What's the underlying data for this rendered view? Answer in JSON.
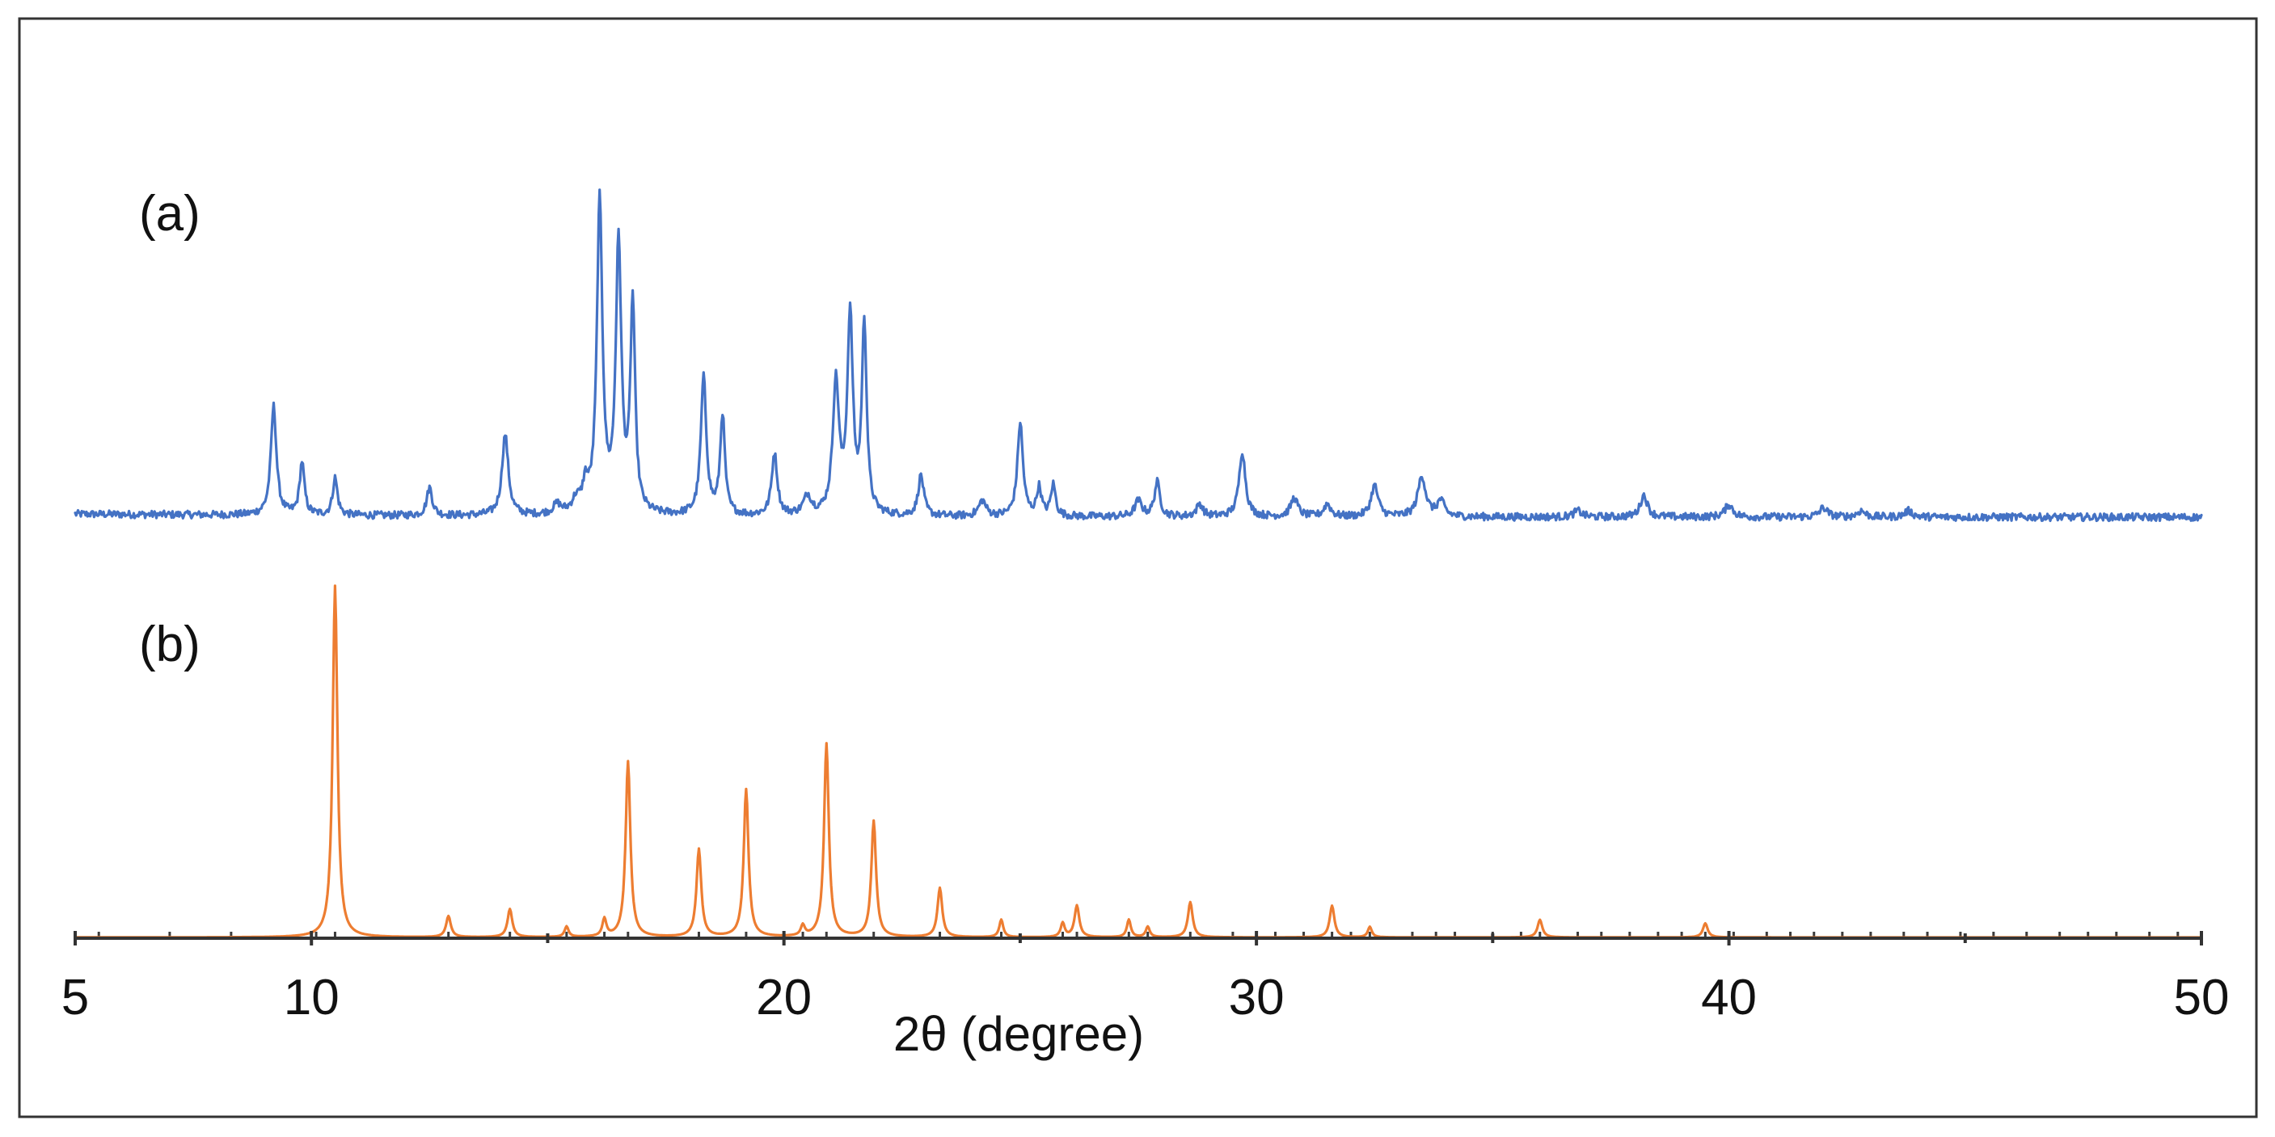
{
  "chart_data": {
    "type": "line",
    "xlabel": "2θ (degree)",
    "ylabel": "",
    "xlim": [
      5,
      50
    ],
    "xticks": [
      5,
      10,
      20,
      30,
      40,
      50
    ],
    "minor_xticks": [
      15,
      25,
      35,
      45
    ],
    "grid": false,
    "legend": "none",
    "series": [
      {
        "name": "(a)",
        "color": "#4472c4",
        "baseline": 0.0,
        "noise": 0.012,
        "peaks": [
          [
            9.2,
            0.35,
            0.07
          ],
          [
            9.8,
            0.17,
            0.06
          ],
          [
            10.5,
            0.12,
            0.06
          ],
          [
            12.5,
            0.09,
            0.07
          ],
          [
            14.1,
            0.26,
            0.08
          ],
          [
            15.2,
            0.03,
            0.1
          ],
          [
            15.6,
            0.04,
            0.1
          ],
          [
            15.8,
            0.08,
            0.07
          ],
          [
            16.1,
            1.0,
            0.07
          ],
          [
            16.5,
            0.86,
            0.07
          ],
          [
            16.8,
            0.67,
            0.06
          ],
          [
            18.3,
            0.44,
            0.07
          ],
          [
            18.7,
            0.32,
            0.06
          ],
          [
            19.8,
            0.2,
            0.07
          ],
          [
            20.5,
            0.06,
            0.1
          ],
          [
            21.1,
            0.42,
            0.08
          ],
          [
            21.4,
            0.63,
            0.07
          ],
          [
            21.7,
            0.61,
            0.06
          ],
          [
            22.9,
            0.13,
            0.07
          ],
          [
            24.2,
            0.05,
            0.09
          ],
          [
            25.0,
            0.3,
            0.07
          ],
          [
            25.4,
            0.09,
            0.06
          ],
          [
            25.7,
            0.1,
            0.06
          ],
          [
            27.5,
            0.05,
            0.09
          ],
          [
            27.9,
            0.11,
            0.07
          ],
          [
            28.8,
            0.04,
            0.08
          ],
          [
            29.7,
            0.21,
            0.08
          ],
          [
            30.8,
            0.06,
            0.09
          ],
          [
            31.5,
            0.04,
            0.09
          ],
          [
            32.5,
            0.1,
            0.09
          ],
          [
            33.5,
            0.13,
            0.1
          ],
          [
            33.9,
            0.05,
            0.09
          ],
          [
            36.8,
            0.02,
            0.1
          ],
          [
            38.2,
            0.07,
            0.09
          ],
          [
            40.0,
            0.04,
            0.1
          ],
          [
            42.0,
            0.03,
            0.1
          ],
          [
            42.8,
            0.02,
            0.1
          ],
          [
            43.8,
            0.02,
            0.1
          ]
        ]
      },
      {
        "name": "(b)",
        "color": "#ed7d31",
        "baseline": 0.0,
        "noise": 0.0,
        "peaks": [
          [
            10.5,
            1.0,
            0.06
          ],
          [
            12.9,
            0.06,
            0.06
          ],
          [
            14.2,
            0.08,
            0.06
          ],
          [
            15.4,
            0.03,
            0.05
          ],
          [
            16.2,
            0.05,
            0.05
          ],
          [
            16.7,
            0.5,
            0.06
          ],
          [
            18.2,
            0.25,
            0.06
          ],
          [
            19.2,
            0.42,
            0.06
          ],
          [
            20.4,
            0.03,
            0.05
          ],
          [
            20.9,
            0.55,
            0.06
          ],
          [
            21.9,
            0.33,
            0.06
          ],
          [
            23.3,
            0.14,
            0.06
          ],
          [
            24.6,
            0.05,
            0.05
          ],
          [
            25.9,
            0.04,
            0.05
          ],
          [
            26.2,
            0.09,
            0.06
          ],
          [
            27.3,
            0.05,
            0.05
          ],
          [
            27.7,
            0.03,
            0.05
          ],
          [
            28.6,
            0.1,
            0.06
          ],
          [
            31.6,
            0.09,
            0.06
          ],
          [
            32.4,
            0.03,
            0.05
          ],
          [
            36.0,
            0.05,
            0.06
          ],
          [
            39.5,
            0.04,
            0.06
          ]
        ]
      }
    ],
    "reference_ticks_x": [
      5.5,
      7.0,
      8.3,
      10.1,
      10.5,
      12.9,
      14.2,
      15.4,
      16.2,
      16.7,
      18.2,
      19.2,
      20.4,
      20.9,
      21.9,
      23.3,
      24.6,
      25.9,
      26.2,
      27.3,
      27.7,
      28.6,
      29.5,
      30.4,
      31.0,
      31.6,
      32.0,
      32.4,
      33.3,
      33.8,
      34.2,
      35.0,
      35.6,
      36.0,
      36.8,
      37.3,
      37.9,
      38.5,
      39.0,
      39.5,
      40.1,
      40.8,
      41.3,
      41.8,
      42.4,
      43.0,
      43.7,
      44.2,
      44.9,
      45.6,
      46.3,
      47.0,
      47.6,
      48.2,
      48.9,
      49.5
    ]
  }
}
